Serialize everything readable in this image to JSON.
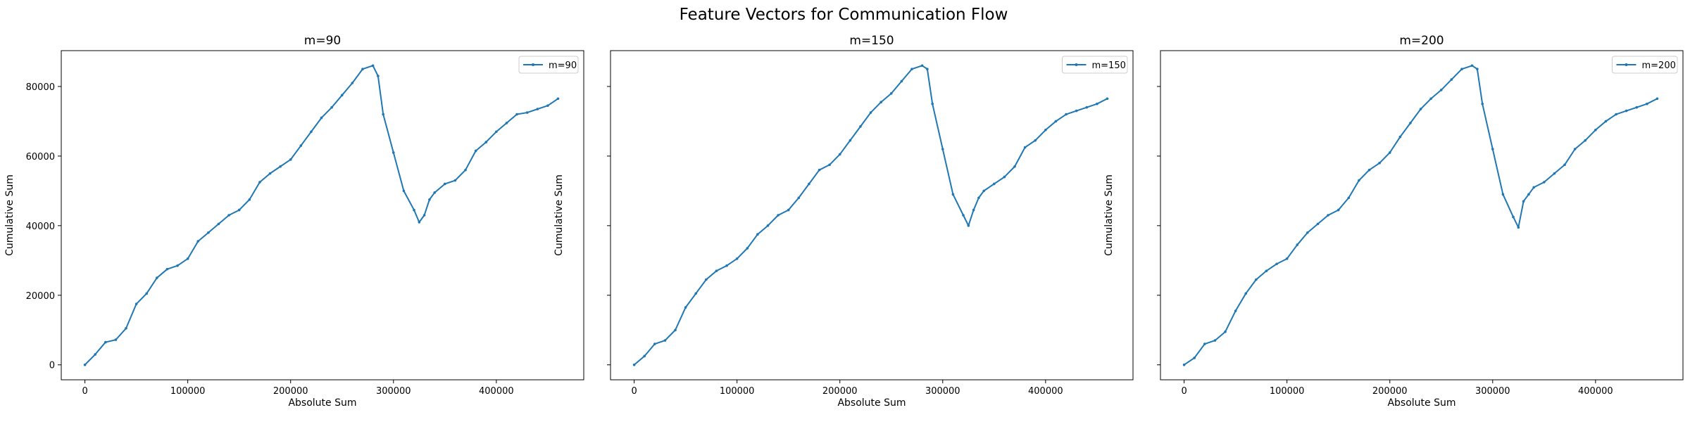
{
  "figure": {
    "suptitle": "Feature Vectors for Communication Flow"
  },
  "colors": {
    "series": "#1f77b4",
    "axes": "#000000",
    "legend_border": "#cccccc"
  },
  "chart_data": [
    {
      "type": "line",
      "title": "m=90",
      "xlabel": "Absolute Sum",
      "ylabel": "Cumulative Sum",
      "xlim": [
        -23000,
        485000
      ],
      "ylim": [
        -4300,
        90300
      ],
      "xticks": [
        0,
        100000,
        200000,
        300000,
        400000
      ],
      "yticks": [
        0,
        20000,
        40000,
        60000,
        80000
      ],
      "show_yticklabels": true,
      "grid": false,
      "legend": "upper right",
      "series": [
        {
          "name": "m=90",
          "marker": "point",
          "x": [
            0,
            10000,
            20000,
            30000,
            40000,
            50000,
            60000,
            70000,
            80000,
            90000,
            100000,
            110000,
            120000,
            130000,
            140000,
            150000,
            160000,
            170000,
            180000,
            190000,
            200000,
            210000,
            220000,
            230000,
            240000,
            250000,
            260000,
            270000,
            280000,
            285000,
            290000,
            300000,
            310000,
            320000,
            325000,
            330000,
            335000,
            340000,
            350000,
            360000,
            370000,
            380000,
            390000,
            400000,
            410000,
            420000,
            430000,
            440000,
            450000,
            460000
          ],
          "y": [
            0,
            3000,
            6500,
            7200,
            10500,
            17500,
            20500,
            25000,
            27500,
            28500,
            30500,
            35500,
            38000,
            40500,
            43000,
            44500,
            47500,
            52500,
            55000,
            57000,
            59000,
            63000,
            67000,
            71000,
            74000,
            77500,
            81000,
            85000,
            86000,
            83000,
            72000,
            61000,
            50000,
            44500,
            41000,
            43000,
            47500,
            49500,
            52000,
            53000,
            56000,
            61500,
            64000,
            67000,
            69500,
            72000,
            72500,
            73500,
            74500,
            76500
          ]
        }
      ]
    },
    {
      "type": "line",
      "title": "m=150",
      "xlabel": "Absolute Sum",
      "ylabel": "Cumulative Sum",
      "xlim": [
        -23000,
        485000
      ],
      "ylim": [
        -4300,
        90300
      ],
      "xticks": [
        0,
        100000,
        200000,
        300000,
        400000
      ],
      "yticks": [
        0,
        20000,
        40000,
        60000,
        80000
      ],
      "show_yticklabels": false,
      "grid": false,
      "legend": "upper right",
      "series": [
        {
          "name": "m=150",
          "marker": "point",
          "x": [
            0,
            10000,
            20000,
            30000,
            40000,
            50000,
            60000,
            70000,
            80000,
            90000,
            100000,
            110000,
            120000,
            130000,
            140000,
            150000,
            160000,
            170000,
            180000,
            190000,
            200000,
            210000,
            220000,
            230000,
            240000,
            250000,
            260000,
            270000,
            280000,
            285000,
            290000,
            300000,
            310000,
            320000,
            325000,
            330000,
            335000,
            340000,
            350000,
            360000,
            370000,
            380000,
            390000,
            400000,
            410000,
            420000,
            430000,
            440000,
            450000,
            460000
          ],
          "y": [
            0,
            2500,
            6000,
            7000,
            10000,
            16500,
            20500,
            24500,
            27000,
            28500,
            30500,
            33500,
            37500,
            40000,
            43000,
            44500,
            48000,
            52000,
            56000,
            57500,
            60500,
            64500,
            68500,
            72500,
            75500,
            78000,
            81500,
            85000,
            86000,
            85000,
            75000,
            62000,
            49000,
            43000,
            40000,
            44500,
            48000,
            50000,
            52000,
            54000,
            57000,
            62500,
            64500,
            67500,
            70000,
            72000,
            73000,
            74000,
            75000,
            76500
          ]
        }
      ]
    },
    {
      "type": "line",
      "title": "m=200",
      "xlabel": "Absolute Sum",
      "ylabel": "Cumulative Sum",
      "xlim": [
        -23000,
        485000
      ],
      "ylim": [
        -4300,
        90300
      ],
      "xticks": [
        0,
        100000,
        200000,
        300000,
        400000
      ],
      "yticks": [
        0,
        20000,
        40000,
        60000,
        80000
      ],
      "show_yticklabels": false,
      "grid": false,
      "legend": "upper right",
      "series": [
        {
          "name": "m=200",
          "marker": "point",
          "x": [
            0,
            10000,
            20000,
            30000,
            40000,
            50000,
            60000,
            70000,
            80000,
            90000,
            100000,
            110000,
            120000,
            130000,
            140000,
            150000,
            160000,
            170000,
            180000,
            190000,
            200000,
            210000,
            220000,
            230000,
            240000,
            250000,
            260000,
            270000,
            280000,
            285000,
            290000,
            300000,
            310000,
            320000,
            325000,
            330000,
            335000,
            340000,
            350000,
            360000,
            370000,
            380000,
            390000,
            400000,
            410000,
            420000,
            430000,
            440000,
            450000,
            460000
          ],
          "y": [
            0,
            2000,
            6000,
            7000,
            9500,
            15500,
            20500,
            24500,
            27000,
            29000,
            30500,
            34500,
            38000,
            40500,
            43000,
            44500,
            48000,
            53000,
            56000,
            58000,
            61000,
            65500,
            69500,
            73500,
            76500,
            79000,
            82000,
            85000,
            86000,
            85000,
            75000,
            62000,
            49000,
            42500,
            39500,
            47000,
            49000,
            51000,
            52500,
            55000,
            57500,
            62000,
            64500,
            67500,
            70000,
            72000,
            73000,
            74000,
            75000,
            76500
          ]
        }
      ]
    }
  ]
}
